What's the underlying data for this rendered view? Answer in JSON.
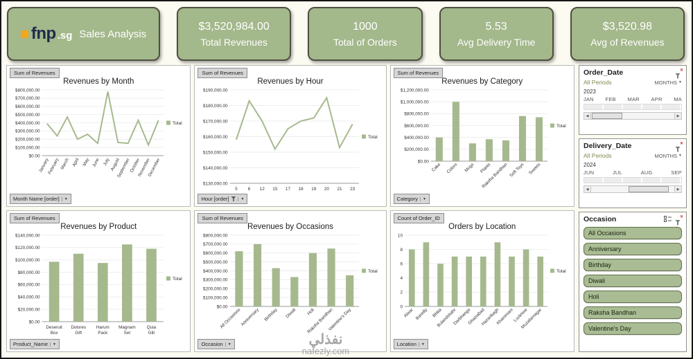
{
  "colors": {
    "accent": "#a6b98e",
    "card": "#a3b88b"
  },
  "header": {
    "logo": {
      "brand": "fnp",
      "tld": ".sg",
      "title": "Sales Analysis"
    },
    "kpis": [
      {
        "value": "$3,520,984.00",
        "label": "Total Revenues"
      },
      {
        "value": "1000",
        "label": "Total of Orders"
      },
      {
        "value": "5.53",
        "label": "Avg Delivery Time"
      },
      {
        "value": "$3,520.98",
        "label": "Avg of Revenues"
      }
    ]
  },
  "charts": [
    {
      "field_button": "Sum of Revenues",
      "title": "Revenues by Month",
      "filter_button": {
        "label": "Month Name [order]",
        "icons": [
          "chevron"
        ]
      },
      "chart_data": {
        "type": "line",
        "title": "Revenues by Month",
        "categories": [
          "January",
          "February",
          "March",
          "April",
          "May",
          "June",
          "July",
          "August",
          "September",
          "October",
          "November",
          "December"
        ],
        "values": [
          390000,
          240000,
          470000,
          200000,
          260000,
          150000,
          780000,
          160000,
          150000,
          430000,
          130000,
          430000
        ],
        "ylim": [
          0,
          800000
        ],
        "ytick_step": 100000,
        "ytick_format": "currency2",
        "xlabel_mode": "rotate60",
        "legend": [
          "Total"
        ],
        "legend_position": "right",
        "grid": false
      }
    },
    {
      "field_button": "Sum of Revenues",
      "title": "Revenues by Hour",
      "filter_button": {
        "label": "Hour [order]",
        "icons": [
          "funnel",
          "chevron"
        ]
      },
      "chart_data": {
        "type": "line",
        "title": "Revenues by Hour",
        "categories": [
          "5",
          "6",
          "12",
          "15",
          "17",
          "18",
          "19",
          "20",
          "21",
          "23"
        ],
        "values": [
          158000,
          183000,
          170000,
          152000,
          165000,
          170000,
          172000,
          185000,
          153000,
          168000
        ],
        "ylim": [
          130000,
          190000
        ],
        "ytick_step": 10000,
        "ytick_format": "currency2",
        "xlabel_mode": "horizontal",
        "legend": [
          "Total"
        ],
        "legend_position": "right",
        "grid": false
      }
    },
    {
      "field_button": "Sum of Revenues",
      "title": "Revenues by Category",
      "filter_button": {
        "label": "Category",
        "icons": [
          "chevron"
        ]
      },
      "chart_data": {
        "type": "bar",
        "title": "Revenues by Category",
        "categories": [
          "Cake",
          "Colors",
          "Mugs",
          "Plants",
          "Raksha Bandhan",
          "Soft Toys",
          "Sweets"
        ],
        "values": [
          400000,
          1000000,
          300000,
          370000,
          350000,
          760000,
          740000
        ],
        "ylim": [
          0,
          1200000
        ],
        "ytick_step": 200000,
        "ytick_format": "currency2",
        "xlabel_mode": "rotate45",
        "legend": [
          "Total"
        ],
        "legend_position": "right",
        "grid": false
      }
    },
    {
      "field_button": "Sum of Revenues",
      "title": "Revenues by Product",
      "filter_button": {
        "label": "Product_Name",
        "icons": [
          "chevron"
        ]
      },
      "chart_data": {
        "type": "bar",
        "title": "Revenues by Product",
        "categories": [
          "Deseruit Box",
          "Dolores Gift",
          "Harum Pack",
          "Magnam Set",
          "Quia Gilt"
        ],
        "values": [
          97000,
          110000,
          95000,
          125000,
          118000
        ],
        "ylim": [
          0,
          140000
        ],
        "ytick_step": 20000,
        "ytick_format": "currency2",
        "xlabel_mode": "twoline",
        "legend": [
          "Total"
        ],
        "legend_position": "right",
        "grid": false
      }
    },
    {
      "field_button": "Sum of Revenues",
      "title": "Revenues by Occasions",
      "filter_button": {
        "label": "Occasion",
        "icons": [
          "chevron"
        ]
      },
      "chart_data": {
        "type": "bar",
        "title": "Revenues by Occasions",
        "categories": [
          "All Occasions",
          "Anniversary",
          "Birthday",
          "Diwali",
          "Holi",
          "Raksha Bandhan",
          "Valentine's Day"
        ],
        "values": [
          620000,
          700000,
          430000,
          330000,
          600000,
          650000,
          350000
        ],
        "ylim": [
          0,
          800000
        ],
        "ytick_step": 100000,
        "ytick_format": "currency2",
        "xlabel_mode": "rotate45",
        "legend": [
          "Total"
        ],
        "legend_position": "right",
        "grid": false
      }
    },
    {
      "field_button": "Count of Order_ID",
      "title": "Orders by Location",
      "filter_button": {
        "label": "Location",
        "icons": [
          "chevron"
        ]
      },
      "chart_data": {
        "type": "bar",
        "title": "Orders by Location",
        "categories": [
          "Alwar",
          "Bareilly",
          "Bhilai",
          "Bulandshahr",
          "Darbhanga",
          "Ghaziabad",
          "Hazaribagh",
          "Khammam",
          "Lucknow",
          "Muzafarnagar"
        ],
        "values": [
          8,
          9,
          6,
          7,
          7,
          7,
          9,
          7,
          8,
          7
        ],
        "ylim": [
          0,
          10
        ],
        "ytick_step": 2,
        "ytick_format": "number",
        "xlabel_mode": "rotate45",
        "legend": [
          "Total"
        ],
        "legend_position": "right",
        "grid": false
      }
    }
  ],
  "slicers": {
    "order_date": {
      "title": "Order_Date",
      "period_label": "All Periods",
      "granularity": "MONTHS",
      "year": "2023",
      "months": [
        "JAN",
        "FEB",
        "MAR",
        "APR",
        "MA"
      ]
    },
    "delivery_date": {
      "title": "Delivery_Date",
      "period_label": "All Periods",
      "granularity": "MONTHS",
      "year": "2024",
      "months": [
        "JUN",
        "JUL",
        "AUG",
        "SEP"
      ]
    },
    "occasion": {
      "title": "Occasion",
      "items": [
        "All Occasions",
        "Anniversary",
        "Birthday",
        "Diwali",
        "Holi",
        "Raksha Bandhan",
        "Valentine's Day"
      ]
    }
  },
  "watermark": {
    "arabic": "نفذلي",
    "domain": "nafezly.com"
  }
}
